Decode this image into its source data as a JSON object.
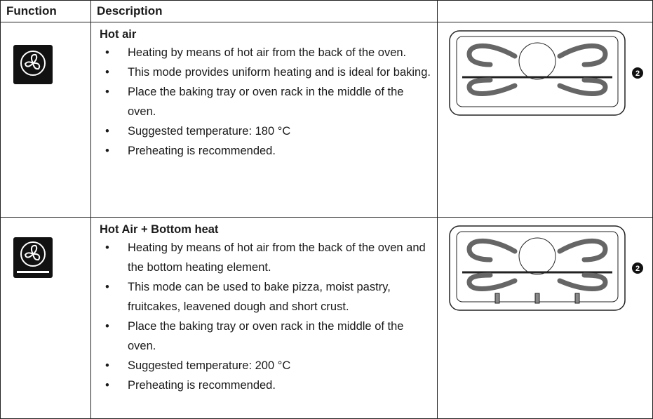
{
  "header": {
    "function": "Function",
    "description": "Description"
  },
  "rows": [
    {
      "title": "Hot air",
      "bullets": [
        "Heating by means of hot air from the back of the oven.",
        "This mode provides uniform heating and is ideal for baking.",
        "Place the baking tray or oven rack in the middle of the oven.",
        "Suggested temperature: 180 °C",
        "Preheating is recommended."
      ],
      "badge": "2"
    },
    {
      "title": "Hot Air + Bottom heat",
      "bullets": [
        "Heating by means of hot air from the back of the oven and the bottom heating element.",
        "This mode can be used to bake pizza, moist pastry, fruitcakes, leavened dough and short crust.",
        "Place the baking tray or oven rack in the middle of the oven.",
        "Suggested temperature: 200 °C",
        "Preheating is recommended."
      ],
      "badge": "2"
    }
  ]
}
